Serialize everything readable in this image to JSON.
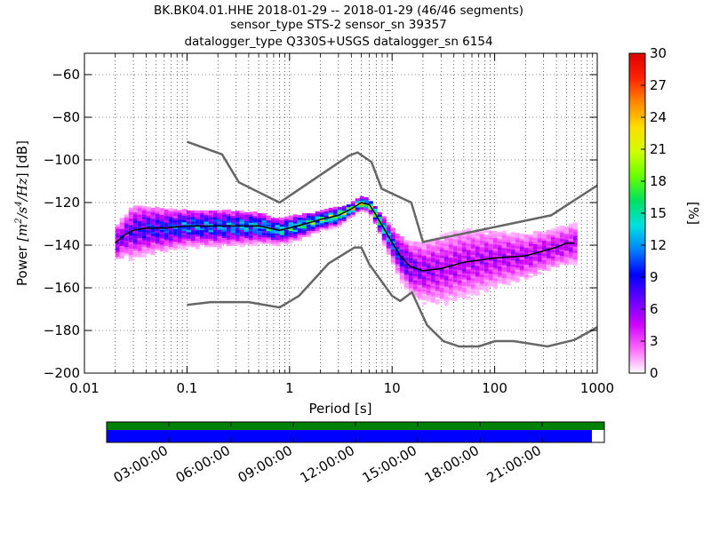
{
  "title_lines": [
    "BK.BK04.01.HHE   2018-01-29 -- 2018-01-29  (46/46 segments)",
    "sensor_type STS-2 sensor_sn 39357",
    "datalogger_type Q330S+USGS datalogger_sn 6154"
  ],
  "colors": {
    "model_line": "#666666",
    "mean_line": "#000000",
    "coverage_top": "#008000",
    "coverage_main": "#0000ff",
    "colormap": [
      "#ffffff",
      "#ff66ff",
      "#cc00ff",
      "#6600ff",
      "#0000ff",
      "#0080ff",
      "#00e0e0",
      "#00e060",
      "#66ff00",
      "#d0ff00",
      "#ffdd00",
      "#ff8800",
      "#ff2200",
      "#dd0000"
    ]
  },
  "chart_data": {
    "type": "heatmap",
    "xlabel": "Period [s]",
    "ylabel_prefix": "Power ",
    "ylabel_unit_base": "[m",
    "ylabel_unit_exp1": "2",
    "ylabel_unit_mid": "/s",
    "ylabel_unit_exp2": "4",
    "ylabel_unit_tail": "/Hz",
    "ylabel_suffix": "] [dB]",
    "x_scale": "log",
    "xlim": [
      0.01,
      1000
    ],
    "ylim": [
      -200,
      -50
    ],
    "x_ticks": [
      0.01,
      0.1,
      1,
      10,
      100,
      1000
    ],
    "x_tick_labels": [
      "0.01",
      "0.1",
      "1",
      "10",
      "100",
      "1000"
    ],
    "y_ticks": [
      -200,
      -180,
      -160,
      -140,
      -120,
      -100,
      -80,
      -60
    ],
    "y_tick_labels": [
      "−200",
      "−180",
      "−160",
      "−140",
      "−120",
      "−100",
      "−80",
      "−60"
    ],
    "grid": true,
    "colorbar": {
      "label": "[%]",
      "range": [
        0,
        30
      ],
      "ticks": [
        0,
        3,
        6,
        9,
        12,
        15,
        18,
        21,
        24,
        27,
        30
      ],
      "tick_labels": [
        "0",
        "3",
        "6",
        "9",
        "12",
        "15",
        "18",
        "21",
        "24",
        "27",
        "30"
      ]
    },
    "high_noise_model": {
      "period": [
        0.1,
        0.22,
        0.32,
        0.8,
        3.8,
        4.6,
        6.3,
        7.9,
        15.4,
        20,
        354.8,
        1000
      ],
      "db": [
        -91.5,
        -97.4,
        -110.5,
        -120,
        -98,
        -96.5,
        -101,
        -113.5,
        -120,
        -138.5,
        -126,
        -112
      ]
    },
    "low_noise_model": {
      "period": [
        0.1,
        0.17,
        0.4,
        0.8,
        1.24,
        2.4,
        4.3,
        5,
        6,
        10,
        12,
        15.6,
        21.9,
        31.6,
        45,
        70,
        101,
        154,
        328,
        600,
        1000
      ],
      "db": [
        -168,
        -166.7,
        -166.7,
        -169.2,
        -163.7,
        -148.6,
        -141.1,
        -141.1,
        -149,
        -163.8,
        -166.2,
        -162.1,
        -177.5,
        -185,
        -187.5,
        -187.5,
        -185,
        -185,
        -187.5,
        -184.4,
        -178.5
      ]
    },
    "mean_psd": {
      "period": [
        0.02,
        0.025,
        0.03,
        0.04,
        0.06,
        0.1,
        0.2,
        0.5,
        0.8,
        1.2,
        2,
        3,
        4,
        5,
        6,
        7,
        9,
        12,
        15,
        20,
        30,
        50,
        100,
        200,
        400,
        500,
        600
      ],
      "db": [
        -139,
        -135,
        -133,
        -132,
        -132,
        -131,
        -131,
        -131,
        -133,
        -131,
        -128,
        -126,
        -123,
        -120,
        -121,
        -126,
        -135,
        -145,
        -150,
        -152,
        -151,
        -148,
        -146,
        -145,
        -141,
        -139,
        -139
      ]
    },
    "density": {
      "center_period": [
        0.02,
        0.025,
        0.03,
        0.04,
        0.06,
        0.1,
        0.2,
        0.5,
        0.8,
        1.2,
        2,
        3,
        4,
        5,
        6,
        7,
        9,
        12,
        15,
        20,
        30,
        50,
        100,
        200,
        400,
        600
      ],
      "center_db": [
        -139,
        -135,
        -133,
        -132,
        -132,
        -131,
        -131,
        -131,
        -133,
        -131,
        -128,
        -126,
        -123,
        -120,
        -121,
        -126,
        -135,
        -145,
        -150,
        -152,
        -151,
        -148,
        -146,
        -145,
        -141,
        -139
      ],
      "spread_db": [
        6,
        7,
        9,
        8,
        7,
        6,
        6,
        5,
        4,
        4,
        3,
        3,
        2,
        2,
        2,
        3,
        5,
        7,
        9,
        10,
        12,
        12,
        10,
        8,
        7,
        7
      ],
      "peak_percent": [
        8,
        8,
        9,
        10,
        11,
        13,
        13,
        15,
        16,
        17,
        19,
        21,
        23,
        26,
        25,
        20,
        14,
        10,
        8,
        7,
        6,
        6,
        6,
        6,
        6,
        6
      ]
    },
    "coverage": {
      "time_ticks": [
        "03:00:00",
        "06:00:00",
        "09:00:00",
        "12:00:00",
        "15:00:00",
        "18:00:00",
        "21:00:00"
      ],
      "tick_hours": [
        3,
        6,
        9,
        12,
        15,
        18,
        21
      ],
      "range_hours": [
        0,
        24
      ],
      "data_end_hour": 23.4
    }
  }
}
